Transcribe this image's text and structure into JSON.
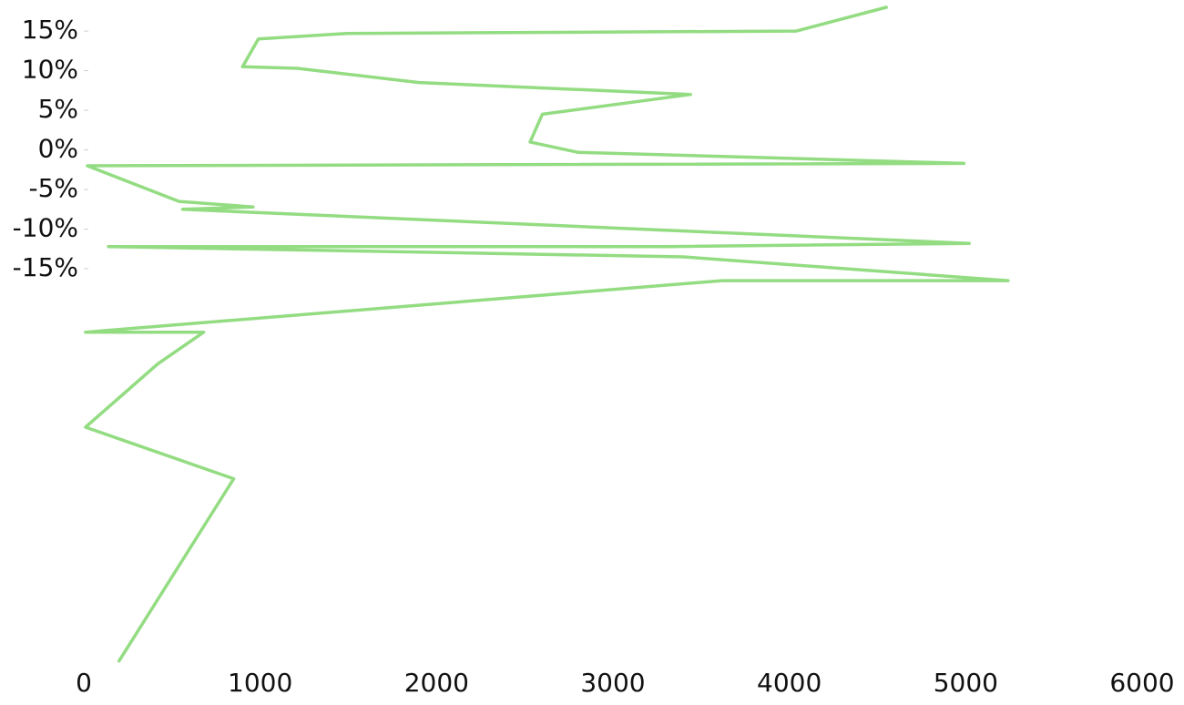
{
  "chart_data": {
    "type": "line",
    "title": "",
    "xlabel": "",
    "ylabel": "",
    "xlim": [
      0,
      6000
    ],
    "ylim": [
      -65,
      18
    ],
    "grid": false,
    "legend": "none",
    "x_ticks": [
      "0",
      "1000",
      "2000",
      "3000",
      "4000",
      "5000",
      "6000"
    ],
    "x_tick_values": [
      0,
      1000,
      2000,
      3000,
      4000,
      5000,
      6000
    ],
    "y_ticks": [
      "15%",
      "10%",
      "5%",
      "0%",
      "-5%",
      "-10%",
      "-15%"
    ],
    "y_tick_values": [
      15,
      10,
      5,
      0,
      -5,
      -10,
      -15
    ],
    "series": [
      {
        "color": "#93dc82",
        "x": [
          200,
          850,
          10,
          420,
          680,
          10,
          3620,
          5240,
          3400,
          140,
          3310,
          5020,
          560,
          960,
          540,
          20,
          4990,
          2800,
          2530,
          2600,
          3440,
          1900,
          1210,
          900,
          990,
          1490,
          4040,
          4550
        ],
        "y": [
          -64.5,
          -41.5,
          -35,
          -27,
          -23,
          -23,
          -16.5,
          -16.5,
          -13.5,
          -12.2,
          -12.2,
          -11.8,
          -7.5,
          -7.2,
          -6.5,
          -2,
          -1.7,
          -0.3,
          1,
          4.5,
          7,
          8.5,
          10.3,
          10.5,
          14,
          14.7,
          15,
          18
        ]
      }
    ]
  }
}
